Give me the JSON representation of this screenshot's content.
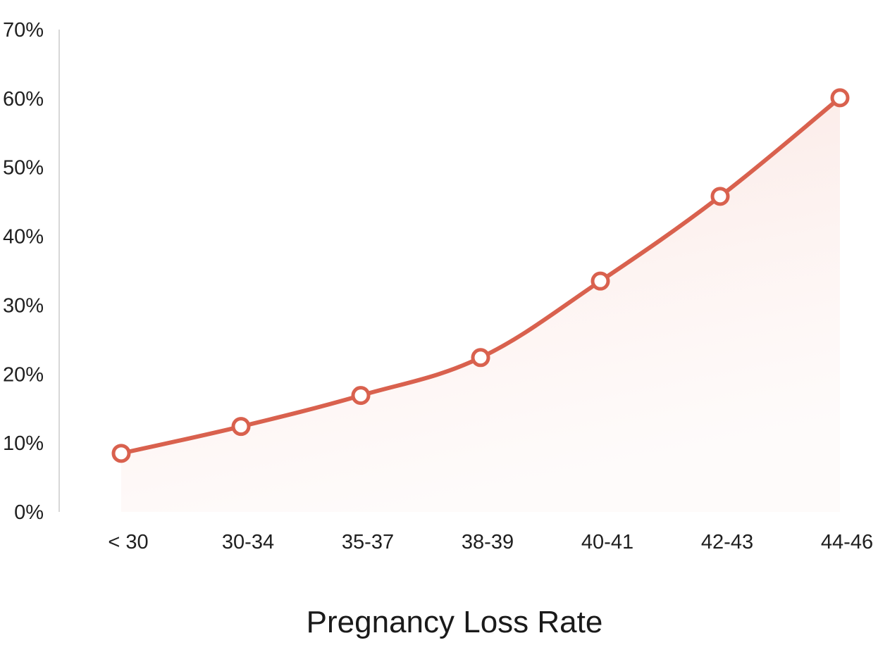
{
  "chart_data": {
    "type": "area",
    "title": "",
    "xlabel": "Pregnancy Loss Rate",
    "ylabel": "",
    "categories": [
      "< 30",
      "30-34",
      "35-37",
      "38-39",
      "40-41",
      "42-43",
      "44-46"
    ],
    "series": [
      {
        "values": [
          8.5,
          12.4,
          16.9,
          22.4,
          33.5,
          45.8,
          60.1
        ]
      }
    ],
    "ylim": [
      0,
      70
    ],
    "yticks": [
      0,
      10,
      20,
      30,
      40,
      50,
      60,
      70
    ],
    "ytick_format": "percent",
    "grid": false,
    "legend": "none",
    "line_style": "smooth",
    "marker": "hollow-circle",
    "colors": {
      "line": "#d9614e",
      "fill": "#f7d9d3",
      "marker_fill": "#ffffff",
      "axis": "#d8d8d8",
      "text": "#1f1f1f"
    }
  }
}
